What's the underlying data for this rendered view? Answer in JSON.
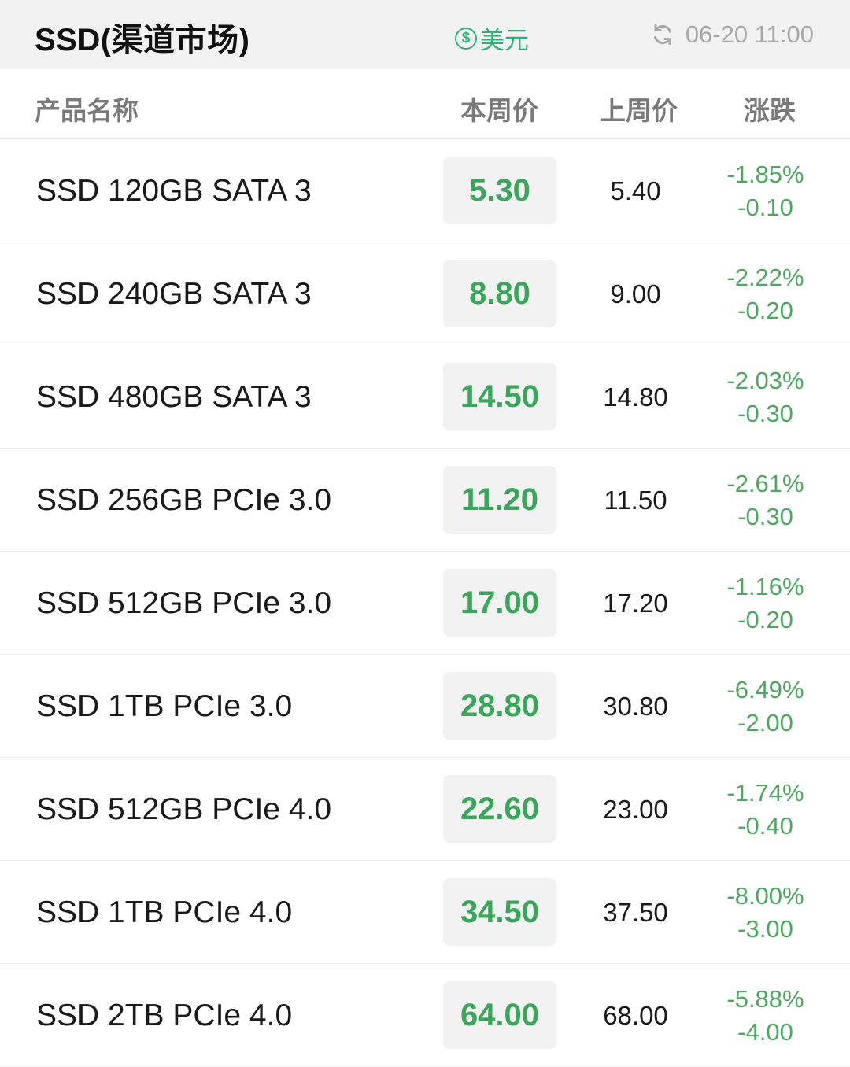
{
  "header": {
    "title": "SSD(渠道市场)",
    "currency_symbol": "$",
    "currency_label": "美元",
    "updated_time": "06-20 11:00",
    "refresh_icon": "refresh-icon"
  },
  "columns": {
    "name": "产品名称",
    "current": "本周价",
    "previous": "上周价",
    "change": "涨跌"
  },
  "colors": {
    "accent_green": "#33b07a",
    "price_green": "#3aa65a",
    "change_green": "#4fa861"
  },
  "rows": [
    {
      "name": "SSD 120GB SATA 3",
      "current": "5.30",
      "previous": "5.40",
      "change_pct": "-1.85%",
      "change_abs": "-0.10"
    },
    {
      "name": "SSD 240GB SATA 3",
      "current": "8.80",
      "previous": "9.00",
      "change_pct": "-2.22%",
      "change_abs": "-0.20"
    },
    {
      "name": "SSD 480GB SATA 3",
      "current": "14.50",
      "previous": "14.80",
      "change_pct": "-2.03%",
      "change_abs": "-0.30"
    },
    {
      "name": "SSD 256GB PCIe 3.0",
      "current": "11.20",
      "previous": "11.50",
      "change_pct": "-2.61%",
      "change_abs": "-0.30"
    },
    {
      "name": "SSD 512GB PCIe 3.0",
      "current": "17.00",
      "previous": "17.20",
      "change_pct": "-1.16%",
      "change_abs": "-0.20"
    },
    {
      "name": "SSD 1TB PCIe 3.0",
      "current": "28.80",
      "previous": "30.80",
      "change_pct": "-6.49%",
      "change_abs": "-2.00"
    },
    {
      "name": "SSD 512GB PCIe 4.0",
      "current": "22.60",
      "previous": "23.00",
      "change_pct": "-1.74%",
      "change_abs": "-0.40"
    },
    {
      "name": "SSD 1TB PCIe 4.0",
      "current": "34.50",
      "previous": "37.50",
      "change_pct": "-8.00%",
      "change_abs": "-3.00"
    },
    {
      "name": "SSD 2TB PCIe 4.0",
      "current": "64.00",
      "previous": "68.00",
      "change_pct": "-5.88%",
      "change_abs": "-4.00"
    }
  ]
}
